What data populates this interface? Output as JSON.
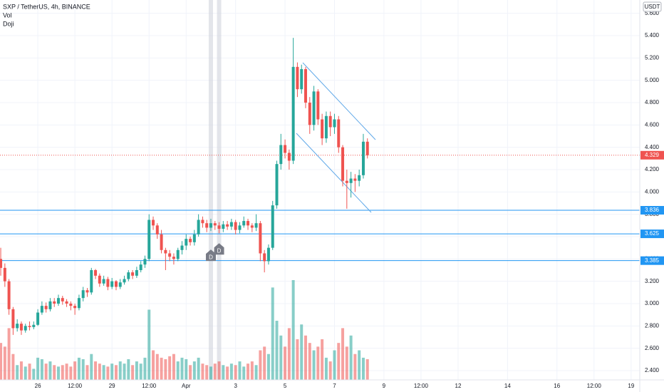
{
  "chart_data": {
    "type": "candlestick",
    "title": "SXP / TetherUS, 4h, BINANCE",
    "indicators": [
      "Vol",
      "Doji"
    ],
    "currency": "USDT",
    "x": [
      24.5,
      24.667,
      24.833,
      25,
      25.167,
      25.333,
      25.5,
      25.667,
      25.833,
      26,
      26.167,
      26.333,
      26.5,
      26.667,
      26.833,
      27,
      27.167,
      27.333,
      27.5,
      27.667,
      27.833,
      28,
      28.167,
      28.333,
      28.5,
      28.667,
      28.833,
      29,
      29.167,
      29.333,
      29.5,
      29.667,
      29.833,
      30,
      30.167,
      30.333,
      30.5,
      30.667,
      30.833,
      31,
      31.167,
      31.333,
      31.5,
      31.667,
      31.833,
      32,
      32.167,
      32.333,
      32.5,
      32.667,
      32.833,
      33,
      33.167,
      33.333,
      33.5,
      33.667,
      33.833,
      34,
      34.167,
      34.333,
      34.5,
      34.667,
      34.833,
      35,
      35.167,
      35.333,
      35.5,
      35.667,
      35.833,
      36,
      36.167,
      36.333,
      36.5,
      36.667,
      36.833,
      37,
      37.167,
      37.333,
      37.5,
      37.667,
      37.833,
      38,
      38.167,
      38.333,
      38.5,
      38.667,
      38.833,
      39,
      39.167,
      39.333
    ],
    "open": [
      3.4,
      3.32,
      3.2,
      2.95,
      2.78,
      2.82,
      2.76,
      2.8,
      2.79,
      2.81,
      2.92,
      2.98,
      2.95,
      3.02,
      3.0,
      3.05,
      3.02,
      3.0,
      2.98,
      2.96,
      3.05,
      3.12,
      3.1,
      3.3,
      3.25,
      3.18,
      3.22,
      3.15,
      3.2,
      3.15,
      3.19,
      3.22,
      3.28,
      3.25,
      3.3,
      3.35,
      3.4,
      3.75,
      3.7,
      3.62,
      3.48,
      3.45,
      3.42,
      3.4,
      3.48,
      3.52,
      3.58,
      3.55,
      3.62,
      3.75,
      3.72,
      3.68,
      3.72,
      3.7,
      3.67,
      3.71,
      3.69,
      3.73,
      3.66,
      3.7,
      3.74,
      3.7,
      3.68,
      3.72,
      3.45,
      3.38,
      3.5,
      3.88,
      4.25,
      4.42,
      4.35,
      4.28,
      5.12,
      4.92,
      5.1,
      4.8,
      4.6,
      4.9,
      4.65,
      4.48,
      4.68,
      4.58,
      4.65,
      4.4,
      4.1,
      4.08,
      4.12,
      4.1,
      4.15,
      4.45
    ],
    "high": [
      3.5,
      3.36,
      3.22,
      2.97,
      2.86,
      2.84,
      2.82,
      2.84,
      2.84,
      2.95,
      3.02,
      3.01,
      3.05,
      3.05,
      3.08,
      3.07,
      3.04,
      3.02,
      3.0,
      3.08,
      3.15,
      3.14,
      3.32,
      3.31,
      3.27,
      3.25,
      3.24,
      3.23,
      3.21,
      3.22,
      3.25,
      3.3,
      3.3,
      3.33,
      3.38,
      3.43,
      3.8,
      3.78,
      3.72,
      3.66,
      3.5,
      3.48,
      3.45,
      3.5,
      3.56,
      3.62,
      3.6,
      3.66,
      3.8,
      3.78,
      3.75,
      3.76,
      3.74,
      3.73,
      3.74,
      3.74,
      3.76,
      3.75,
      3.73,
      3.78,
      3.76,
      3.72,
      3.8,
      3.74,
      3.48,
      3.53,
      3.92,
      4.28,
      4.52,
      4.47,
      4.38,
      5.38,
      5.16,
      5.14,
      5.12,
      4.85,
      4.95,
      4.92,
      4.7,
      4.72,
      4.72,
      4.7,
      4.68,
      4.42,
      4.2,
      4.18,
      4.16,
      4.2,
      4.52,
      4.48
    ],
    "low": [
      3.25,
      3.15,
      2.9,
      2.72,
      2.75,
      2.72,
      2.74,
      2.76,
      2.77,
      2.8,
      2.9,
      2.92,
      2.93,
      2.97,
      2.98,
      2.99,
      2.97,
      2.94,
      2.9,
      2.94,
      3.02,
      3.06,
      3.08,
      3.22,
      3.15,
      3.16,
      3.12,
      3.13,
      3.12,
      3.13,
      3.17,
      3.2,
      3.22,
      3.23,
      3.28,
      3.32,
      3.38,
      3.66,
      3.58,
      3.45,
      3.3,
      3.38,
      3.35,
      3.38,
      3.44,
      3.48,
      3.52,
      3.52,
      3.6,
      3.68,
      3.64,
      3.65,
      3.66,
      3.63,
      3.64,
      3.66,
      3.66,
      3.62,
      3.63,
      3.68,
      3.66,
      3.64,
      3.65,
      3.38,
      3.28,
      3.35,
      3.48,
      3.85,
      4.2,
      4.3,
      4.2,
      4.25,
      4.85,
      4.88,
      4.75,
      4.52,
      4.55,
      4.6,
      4.42,
      4.44,
      4.5,
      4.52,
      4.35,
      4.05,
      3.85,
      3.95,
      4.0,
      4.05,
      4.12,
      4.3
    ],
    "close": [
      3.32,
      3.2,
      2.95,
      2.78,
      2.82,
      2.76,
      2.8,
      2.79,
      2.81,
      2.92,
      2.98,
      2.95,
      3.02,
      3.0,
      3.05,
      3.02,
      3.0,
      2.98,
      2.96,
      3.05,
      3.12,
      3.1,
      3.3,
      3.25,
      3.18,
      3.22,
      3.15,
      3.2,
      3.15,
      3.19,
      3.22,
      3.28,
      3.25,
      3.3,
      3.35,
      3.4,
      3.75,
      3.7,
      3.62,
      3.48,
      3.45,
      3.42,
      3.4,
      3.48,
      3.52,
      3.58,
      3.55,
      3.62,
      3.75,
      3.72,
      3.68,
      3.72,
      3.7,
      3.67,
      3.71,
      3.69,
      3.73,
      3.66,
      3.7,
      3.74,
      3.7,
      3.68,
      3.72,
      3.45,
      3.38,
      3.5,
      3.88,
      4.25,
      4.42,
      4.35,
      4.28,
      5.12,
      4.92,
      5.1,
      4.8,
      4.6,
      4.9,
      4.65,
      4.48,
      4.68,
      4.58,
      4.65,
      4.4,
      4.1,
      4.08,
      4.12,
      4.1,
      4.15,
      4.45,
      4.329
    ],
    "volume": [
      50,
      45,
      70,
      35,
      20,
      25,
      18,
      22,
      15,
      30,
      28,
      22,
      25,
      20,
      18,
      20,
      22,
      18,
      25,
      30,
      28,
      20,
      35,
      25,
      22,
      20,
      18,
      22,
      20,
      25,
      22,
      28,
      20,
      25,
      22,
      30,
      95,
      40,
      35,
      30,
      28,
      32,
      35,
      25,
      30,
      28,
      20,
      25,
      30,
      22,
      20,
      18,
      22,
      25,
      20,
      18,
      22,
      20,
      25,
      18,
      22,
      25,
      20,
      40,
      45,
      35,
      125,
      80,
      60,
      45,
      70,
      135,
      55,
      75,
      60,
      50,
      40,
      45,
      55,
      30,
      25,
      40,
      50,
      70,
      45,
      60,
      35,
      40,
      30,
      28
    ],
    "up_color": "#26a69a",
    "down_color": "#ef5350",
    "level_color": "#2196f3",
    "levels": [
      3.836,
      3.625,
      3.385
    ],
    "last_price": 4.329,
    "doji": [
      {
        "text": "D",
        "x": 33
      },
      {
        "text": "D",
        "x": 33.333
      }
    ],
    "xlim": [
      24.47,
      50.35
    ],
    "ylim": [
      2.317,
      5.719
    ],
    "xticks": [
      {
        "value": 26,
        "label": "26"
      },
      {
        "value": 27.5,
        "label": "12:00"
      },
      {
        "value": 29,
        "label": "29"
      },
      {
        "value": 30.5,
        "label": "12:00"
      },
      {
        "value": 32,
        "label": "Apr"
      },
      {
        "value": 34,
        "label": "3"
      },
      {
        "value": 36,
        "label": "5"
      },
      {
        "value": 38,
        "label": "7"
      },
      {
        "value": 40,
        "label": "9"
      },
      {
        "value": 41.5,
        "label": "12:00"
      },
      {
        "value": 43,
        "label": "12"
      },
      {
        "value": 45,
        "label": "14"
      },
      {
        "value": 47,
        "label": "16"
      },
      {
        "value": 48.5,
        "label": "12:00"
      },
      {
        "value": 50,
        "label": "19"
      }
    ],
    "yticks": [
      {
        "value": 2.4,
        "label": "2.400"
      },
      {
        "value": 2.6,
        "label": "2.600"
      },
      {
        "value": 2.8,
        "label": "2.800"
      },
      {
        "value": 3.0,
        "label": "3.000"
      },
      {
        "value": 3.2,
        "label": "3.200"
      },
      {
        "value": 3.4,
        "label": "3.400"
      },
      {
        "value": 3.6,
        "label": "3.600"
      },
      {
        "value": 3.8,
        "label": "3.800"
      },
      {
        "value": 4.0,
        "label": "4.000"
      },
      {
        "value": 4.2,
        "label": "4.200"
      },
      {
        "value": 4.4,
        "label": "4.400"
      },
      {
        "value": 4.6,
        "label": "4.600"
      },
      {
        "value": 4.8,
        "label": "4.800"
      },
      {
        "value": 5.0,
        "label": "5.000"
      },
      {
        "value": 5.2,
        "label": "5.200"
      },
      {
        "value": 5.4,
        "label": "5.400"
      },
      {
        "value": 5.6,
        "label": "5.600"
      }
    ],
    "grid": true
  }
}
